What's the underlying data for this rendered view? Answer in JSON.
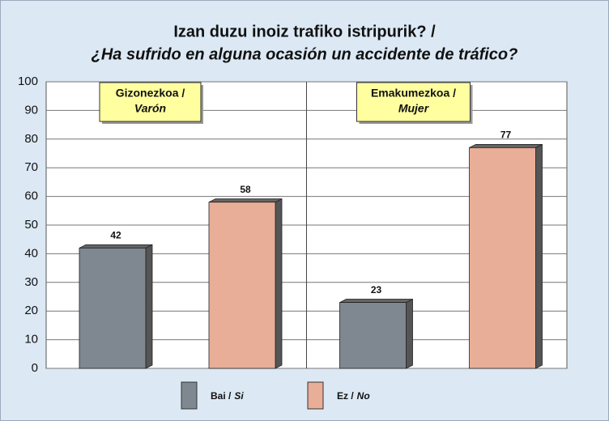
{
  "chart_data": {
    "type": "bar3d",
    "title": [
      "Izan duzu inoiz trafiko istripurik? /",
      "¿Ha sufrido en alguna ocasión un accidente de tráfico?"
    ],
    "categories": [
      [
        "Gizonezkoa /",
        "Varón"
      ],
      [
        "Emakumezkoa /",
        "Mujer"
      ]
    ],
    "series": [
      {
        "name": [
          "Bai /",
          "Si"
        ],
        "color": "#7f8891",
        "values": [
          42,
          23
        ]
      },
      {
        "name": [
          "Ez /",
          "No"
        ],
        "color": "#e8ae98",
        "values": [
          58,
          77
        ]
      }
    ],
    "ylim": [
      0,
      100
    ],
    "yticks": [
      0,
      10,
      20,
      30,
      40,
      50,
      60,
      70,
      80,
      90,
      100
    ],
    "grid": true,
    "legend": "bottom"
  }
}
